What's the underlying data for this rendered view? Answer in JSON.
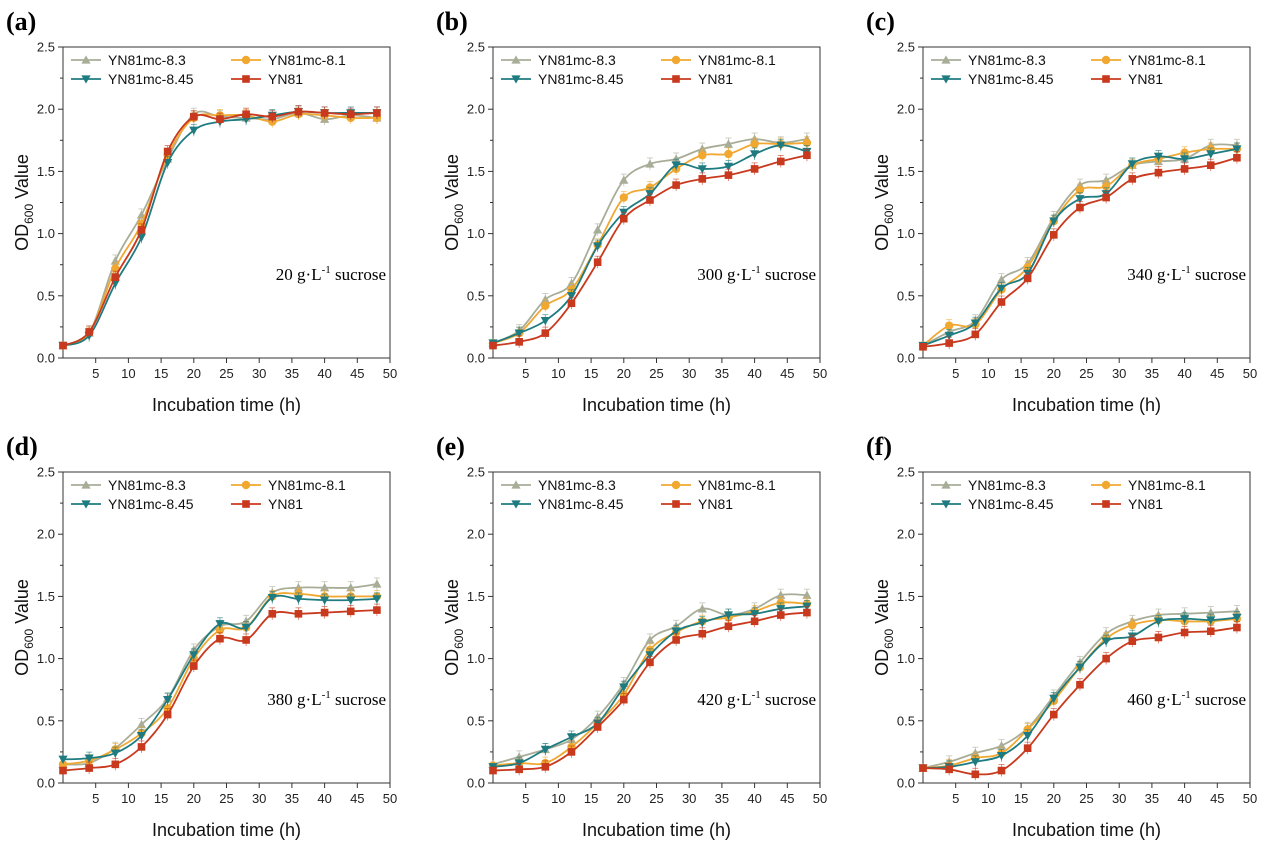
{
  "figure": {
    "x_ticks": [
      "5",
      "10",
      "15",
      "20",
      "25",
      "30",
      "35",
      "40",
      "45",
      "50"
    ],
    "y_ticks": [
      "0.0",
      "0.5",
      "1.0",
      "1.5",
      "2.0",
      "2.5"
    ]
  },
  "chart_data": [
    {
      "type": "line",
      "panel_label": "(a)",
      "annotation": {
        "prefix": "20 g·L",
        "sup": "-1",
        "suffix": " sucrose"
      },
      "xlabel": "Incubation time (h)",
      "ylabel": {
        "main": "OD",
        "sub": "600",
        "rest": " Value"
      },
      "xlim": [
        0,
        50
      ],
      "ylim": [
        0,
        2.5
      ],
      "x": [
        0,
        4,
        8,
        12,
        16,
        20,
        24,
        28,
        32,
        36,
        40,
        44,
        48
      ],
      "legend_position": "top-left",
      "series": [
        {
          "name": "YN81mc-8.3",
          "color": "#a8ad98",
          "marker": "triangle-up",
          "values": [
            0.1,
            0.2,
            0.78,
            1.15,
            1.6,
            1.96,
            1.94,
            1.93,
            1.92,
            1.97,
            1.92,
            1.95,
            1.93
          ]
        },
        {
          "name": "YN81mc-8.1",
          "color": "#f0a830",
          "marker": "circle",
          "values": [
            0.1,
            0.2,
            0.72,
            1.08,
            1.63,
            1.93,
            1.95,
            1.95,
            1.9,
            1.96,
            1.95,
            1.93,
            1.93
          ]
        },
        {
          "name": "YN81mc-8.45",
          "color": "#1e7b80",
          "marker": "triangle-down",
          "values": [
            0.1,
            0.18,
            0.6,
            0.97,
            1.57,
            1.83,
            1.9,
            1.92,
            1.95,
            1.98,
            1.97,
            1.97,
            1.97
          ]
        },
        {
          "name": "YN81",
          "color": "#c8391d",
          "marker": "square",
          "values": [
            0.1,
            0.21,
            0.65,
            1.03,
            1.66,
            1.94,
            1.92,
            1.96,
            1.94,
            1.98,
            1.97,
            1.96,
            1.97
          ]
        }
      ]
    },
    {
      "type": "line",
      "panel_label": "(b)",
      "annotation": {
        "prefix": "300 g·L",
        "sup": "-1",
        "suffix": " sucrose"
      },
      "xlabel": "Incubation time (h)",
      "ylabel": {
        "main": "OD",
        "sub": "600",
        "rest": " Value"
      },
      "xlim": [
        0,
        50
      ],
      "ylim": [
        0,
        2.5
      ],
      "x": [
        0,
        4,
        8,
        12,
        16,
        20,
        24,
        28,
        32,
        36,
        40,
        44,
        48
      ],
      "legend_position": "top-left",
      "series": [
        {
          "name": "YN81mc-8.3",
          "color": "#a8ad98",
          "marker": "triangle-up",
          "values": [
            0.12,
            0.22,
            0.47,
            0.6,
            1.03,
            1.43,
            1.56,
            1.6,
            1.68,
            1.72,
            1.76,
            1.73,
            1.76
          ]
        },
        {
          "name": "YN81mc-8.1",
          "color": "#f0a830",
          "marker": "circle",
          "values": [
            0.12,
            0.2,
            0.42,
            0.55,
            0.91,
            1.29,
            1.37,
            1.52,
            1.63,
            1.64,
            1.72,
            1.72,
            1.73
          ]
        },
        {
          "name": "YN81mc-8.45",
          "color": "#1e7b80",
          "marker": "triangle-down",
          "values": [
            0.12,
            0.2,
            0.3,
            0.5,
            0.9,
            1.17,
            1.32,
            1.55,
            1.52,
            1.54,
            1.64,
            1.71,
            1.66
          ]
        },
        {
          "name": "YN81",
          "color": "#c8391d",
          "marker": "square",
          "values": [
            0.1,
            0.13,
            0.2,
            0.44,
            0.77,
            1.12,
            1.27,
            1.39,
            1.44,
            1.47,
            1.52,
            1.58,
            1.63
          ]
        }
      ]
    },
    {
      "type": "line",
      "panel_label": "(c)",
      "annotation": {
        "prefix": "340 g·L",
        "sup": "-1",
        "suffix": " sucrose"
      },
      "xlabel": "Incubation time (h)",
      "ylabel": {
        "main": "OD",
        "sub": "600",
        "rest": " Value"
      },
      "xlim": [
        0,
        50
      ],
      "ylim": [
        0,
        2.5
      ],
      "x": [
        0,
        4,
        8,
        12,
        16,
        20,
        24,
        28,
        32,
        36,
        40,
        44,
        48
      ],
      "legend_position": "top-left",
      "series": [
        {
          "name": "YN81mc-8.3",
          "color": "#a8ad98",
          "marker": "triangle-up",
          "values": [
            0.1,
            0.21,
            0.3,
            0.63,
            0.76,
            1.13,
            1.39,
            1.43,
            1.55,
            1.58,
            1.6,
            1.71,
            1.71
          ]
        },
        {
          "name": "YN81mc-8.1",
          "color": "#f0a830",
          "marker": "circle",
          "values": [
            0.1,
            0.26,
            0.27,
            0.55,
            0.73,
            1.1,
            1.35,
            1.38,
            1.55,
            1.6,
            1.65,
            1.68,
            1.68
          ]
        },
        {
          "name": "YN81mc-8.45",
          "color": "#1e7b80",
          "marker": "triangle-down",
          "values": [
            0.1,
            0.18,
            0.28,
            0.56,
            0.68,
            1.1,
            1.28,
            1.32,
            1.56,
            1.62,
            1.6,
            1.64,
            1.68
          ]
        },
        {
          "name": "YN81",
          "color": "#c8391d",
          "marker": "square",
          "values": [
            0.09,
            0.12,
            0.19,
            0.45,
            0.64,
            0.99,
            1.21,
            1.29,
            1.44,
            1.49,
            1.52,
            1.55,
            1.61
          ]
        }
      ]
    },
    {
      "type": "line",
      "panel_label": "(d)",
      "annotation": {
        "prefix": "380 g·L",
        "sup": "-1",
        "suffix": " sucrose"
      },
      "xlabel": "Incubation time (h)",
      "ylabel": {
        "main": "OD",
        "sub": "600",
        "rest": " Value"
      },
      "xlim": [
        0,
        50
      ],
      "ylim": [
        0,
        2.5
      ],
      "x": [
        0,
        4,
        8,
        12,
        16,
        20,
        24,
        28,
        32,
        36,
        40,
        44,
        48
      ],
      "legend_position": "top-left",
      "series": [
        {
          "name": "YN81mc-8.3",
          "color": "#a8ad98",
          "marker": "triangle-up",
          "values": [
            0.15,
            0.16,
            0.28,
            0.47,
            0.68,
            1.07,
            1.26,
            1.3,
            1.53,
            1.57,
            1.57,
            1.57,
            1.6
          ]
        },
        {
          "name": "YN81mc-8.1",
          "color": "#f0a830",
          "marker": "circle",
          "values": [
            0.15,
            0.18,
            0.27,
            0.4,
            0.6,
            1.0,
            1.23,
            1.25,
            1.5,
            1.52,
            1.5,
            1.5,
            1.5
          ]
        },
        {
          "name": "YN81mc-8.45",
          "color": "#1e7b80",
          "marker": "triangle-down",
          "values": [
            0.19,
            0.2,
            0.24,
            0.38,
            0.67,
            1.03,
            1.28,
            1.25,
            1.49,
            1.48,
            1.47,
            1.47,
            1.48
          ]
        },
        {
          "name": "YN81",
          "color": "#c8391d",
          "marker": "square",
          "values": [
            0.1,
            0.12,
            0.15,
            0.29,
            0.55,
            0.94,
            1.16,
            1.15,
            1.36,
            1.36,
            1.37,
            1.38,
            1.39
          ]
        }
      ]
    },
    {
      "type": "line",
      "panel_label": "(e)",
      "annotation": {
        "prefix": "420 g·L",
        "sup": "-1",
        "suffix": " sucrose"
      },
      "xlabel": "Incubation time (h)",
      "ylabel": {
        "main": "OD",
        "sub": "600",
        "rest": " Value"
      },
      "xlim": [
        0,
        50
      ],
      "ylim": [
        0,
        2.5
      ],
      "x": [
        0,
        4,
        8,
        12,
        16,
        20,
        24,
        28,
        32,
        36,
        40,
        44,
        48
      ],
      "legend_position": "top-left",
      "series": [
        {
          "name": "YN81mc-8.3",
          "color": "#a8ad98",
          "marker": "triangle-up",
          "values": [
            0.15,
            0.21,
            0.27,
            0.35,
            0.53,
            0.8,
            1.15,
            1.26,
            1.4,
            1.35,
            1.4,
            1.51,
            1.51
          ]
        },
        {
          "name": "YN81mc-8.1",
          "color": "#f0a830",
          "marker": "circle",
          "values": [
            0.14,
            0.16,
            0.16,
            0.29,
            0.48,
            0.71,
            1.07,
            1.21,
            1.3,
            1.33,
            1.38,
            1.45,
            1.44
          ]
        },
        {
          "name": "YN81mc-8.45",
          "color": "#1e7b80",
          "marker": "triangle-down",
          "values": [
            0.13,
            0.16,
            0.27,
            0.37,
            0.48,
            0.77,
            1.03,
            1.22,
            1.29,
            1.35,
            1.36,
            1.4,
            1.42
          ]
        },
        {
          "name": "YN81",
          "color": "#c8391d",
          "marker": "square",
          "values": [
            0.1,
            0.11,
            0.13,
            0.25,
            0.45,
            0.67,
            0.97,
            1.15,
            1.2,
            1.26,
            1.3,
            1.35,
            1.37
          ]
        }
      ]
    },
    {
      "type": "line",
      "panel_label": "(f)",
      "annotation": {
        "prefix": "460 g·L",
        "sup": "-1",
        "suffix": " sucrose"
      },
      "xlabel": "Incubation time (h)",
      "ylabel": {
        "main": "OD",
        "sub": "600",
        "rest": " Value"
      },
      "xlim": [
        0,
        50
      ],
      "ylim": [
        0,
        2.5
      ],
      "x": [
        0,
        4,
        8,
        12,
        16,
        20,
        24,
        28,
        32,
        36,
        40,
        44,
        48
      ],
      "legend_position": "top-left",
      "series": [
        {
          "name": "YN81mc-8.3",
          "color": "#a8ad98",
          "marker": "triangle-up",
          "values": [
            0.12,
            0.17,
            0.24,
            0.3,
            0.44,
            0.7,
            0.97,
            1.2,
            1.3,
            1.35,
            1.36,
            1.37,
            1.38
          ]
        },
        {
          "name": "YN81mc-8.1",
          "color": "#f0a830",
          "marker": "circle",
          "values": [
            0.12,
            0.14,
            0.2,
            0.24,
            0.43,
            0.66,
            0.93,
            1.16,
            1.27,
            1.31,
            1.3,
            1.3,
            1.32
          ]
        },
        {
          "name": "YN81mc-8.45",
          "color": "#1e7b80",
          "marker": "triangle-down",
          "values": [
            0.12,
            0.13,
            0.17,
            0.22,
            0.38,
            0.68,
            0.93,
            1.14,
            1.18,
            1.3,
            1.32,
            1.31,
            1.33
          ]
        },
        {
          "name": "YN81",
          "color": "#c8391d",
          "marker": "square",
          "values": [
            0.12,
            0.11,
            0.07,
            0.1,
            0.28,
            0.55,
            0.79,
            1.0,
            1.14,
            1.17,
            1.21,
            1.22,
            1.25
          ]
        }
      ]
    }
  ]
}
